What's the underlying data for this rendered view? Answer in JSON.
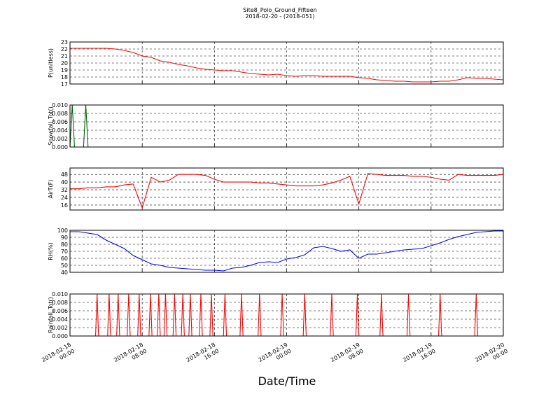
{
  "title": "Site8_Polo_Ground_Fifteen",
  "subtitle": "2018-02-20 - (2018-051)",
  "xlabel": "Date/Time",
  "xlim": [
    "2018-02-18 00:00",
    "2018-02-20 00:00"
  ],
  "xticks": [
    {
      "value": "2018-02-18 00:00",
      "label": "2018-02-18 00:00"
    },
    {
      "value": "2018-02-18 08:00",
      "label": "2018-02-18 08:00"
    },
    {
      "value": "2018-02-18 16:00",
      "label": "2018-02-18 16:00"
    },
    {
      "value": "2018-02-19 00:00",
      "label": "2018-02-19 00:00"
    },
    {
      "value": "2018-02-19 08:00",
      "label": "2018-02-19 08:00"
    },
    {
      "value": "2018-02-19 16:00",
      "label": "2018-02-19 16:00"
    },
    {
      "value": "2018-02-20 00:00",
      "label": "2018-02-20 00:00"
    }
  ],
  "chart_data": [
    {
      "type": "line",
      "ylabel": "P(unitless)",
      "color": "#ff0000",
      "grid": true,
      "ylim": [
        17,
        23
      ],
      "yticks": [
        17,
        18,
        19,
        20,
        21,
        22,
        23
      ],
      "x": [
        "2018-02-18 00:00",
        "2018-02-18 01:00",
        "2018-02-18 02:00",
        "2018-02-18 03:00",
        "2018-02-18 04:00",
        "2018-02-18 05:00",
        "2018-02-18 06:00",
        "2018-02-18 07:00",
        "2018-02-18 08:00",
        "2018-02-18 09:00",
        "2018-02-18 10:00",
        "2018-02-18 11:00",
        "2018-02-18 12:00",
        "2018-02-18 13:00",
        "2018-02-18 14:00",
        "2018-02-18 15:00",
        "2018-02-18 16:00",
        "2018-02-18 17:00",
        "2018-02-18 18:00",
        "2018-02-18 19:00",
        "2018-02-18 20:00",
        "2018-02-18 21:00",
        "2018-02-18 22:00",
        "2018-02-18 23:00",
        "2018-02-19 00:00",
        "2018-02-19 01:00",
        "2018-02-19 02:00",
        "2018-02-19 03:00",
        "2018-02-19 04:00",
        "2018-02-19 05:00",
        "2018-02-19 06:00",
        "2018-02-19 07:00",
        "2018-02-19 08:00",
        "2018-02-19 09:00",
        "2018-02-19 10:00",
        "2018-02-19 11:00",
        "2018-02-19 12:00",
        "2018-02-19 13:00",
        "2018-02-19 14:00",
        "2018-02-19 15:00",
        "2018-02-19 16:00",
        "2018-02-19 17:00",
        "2018-02-19 18:00",
        "2018-02-19 19:00",
        "2018-02-19 20:00",
        "2018-02-19 21:00",
        "2018-02-19 22:00",
        "2018-02-19 23:00",
        "2018-02-20 00:00"
      ],
      "values": [
        22.1,
        22.1,
        22.1,
        22.1,
        22.1,
        22.0,
        21.8,
        21.5,
        21.0,
        20.8,
        20.3,
        20.1,
        19.8,
        19.6,
        19.3,
        19.1,
        19.0,
        18.9,
        18.9,
        18.7,
        18.5,
        18.4,
        18.3,
        18.4,
        18.2,
        18.1,
        18.2,
        18.2,
        18.1,
        18.1,
        18.1,
        18.1,
        17.9,
        17.8,
        17.6,
        17.5,
        17.4,
        17.4,
        17.3,
        17.3,
        17.3,
        17.4,
        17.4,
        17.6,
        17.9,
        17.8,
        17.8,
        17.7,
        17.6
      ]
    },
    {
      "type": "line",
      "ylabel": "Snowfall_Tot()",
      "color": "#006400",
      "grid": true,
      "ylim": [
        0,
        0.01
      ],
      "yticks": [
        {
          "value": 0,
          "label": "0.000"
        },
        {
          "value": 0.002,
          "label": "0.002"
        },
        {
          "value": 0.004,
          "label": "0.004"
        },
        {
          "value": 0.006,
          "label": "0.006"
        },
        {
          "value": 0.008,
          "label": "0.008"
        },
        {
          "value": 0.01,
          "label": "0.010"
        }
      ],
      "x": [
        "2018-02-18 00:00",
        "2018-02-18 00:15",
        "2018-02-18 00:30",
        "2018-02-18 01:30",
        "2018-02-18 01:45",
        "2018-02-18 02:00",
        "2018-02-20 00:00"
      ],
      "values": [
        0,
        0.01,
        0,
        0,
        0.01,
        0,
        0
      ]
    },
    {
      "type": "line",
      "ylabel": "AirT(F)",
      "color": "#ff0000",
      "grid": true,
      "ylim": [
        10.8,
        54.7
      ],
      "yticks": [
        16,
        24,
        32,
        40,
        48
      ],
      "x": [
        "2018-02-18 00:00",
        "2018-02-18 01:00",
        "2018-02-18 02:00",
        "2018-02-18 03:00",
        "2018-02-18 04:00",
        "2018-02-18 05:00",
        "2018-02-18 06:00",
        "2018-02-18 07:00",
        "2018-02-18 08:00",
        "2018-02-18 09:00",
        "2018-02-18 10:00",
        "2018-02-18 11:00",
        "2018-02-18 12:00",
        "2018-02-18 13:00",
        "2018-02-18 14:00",
        "2018-02-18 15:00",
        "2018-02-18 16:00",
        "2018-02-18 17:00",
        "2018-02-18 18:00",
        "2018-02-18 19:00",
        "2018-02-18 20:00",
        "2018-02-18 21:00",
        "2018-02-18 22:00",
        "2018-02-18 23:00",
        "2018-02-19 00:00",
        "2018-02-19 01:00",
        "2018-02-19 02:00",
        "2018-02-19 03:00",
        "2018-02-19 04:00",
        "2018-02-19 05:00",
        "2018-02-19 06:00",
        "2018-02-19 07:00",
        "2018-02-19 08:00",
        "2018-02-19 09:00",
        "2018-02-19 10:00",
        "2018-02-19 11:00",
        "2018-02-19 12:00",
        "2018-02-19 13:00",
        "2018-02-19 14:00",
        "2018-02-19 15:00",
        "2018-02-19 16:00",
        "2018-02-19 17:00",
        "2018-02-19 18:00",
        "2018-02-19 19:00",
        "2018-02-19 20:00",
        "2018-02-19 21:00",
        "2018-02-19 22:00",
        "2018-02-19 23:00",
        "2018-02-20 00:00"
      ],
      "values": [
        33,
        33,
        34,
        34,
        35,
        35,
        37,
        38,
        13,
        45,
        40,
        42,
        48,
        48,
        48,
        47,
        43,
        40,
        40,
        40,
        40,
        39,
        39,
        38,
        37,
        36,
        36,
        36,
        37,
        39,
        42,
        46,
        17,
        49,
        48,
        47,
        47,
        47,
        46,
        46,
        45,
        43,
        42,
        48,
        47,
        47,
        47,
        47,
        48
      ]
    },
    {
      "type": "line",
      "ylabel": "RH(%)",
      "color": "#0000ff",
      "grid": true,
      "ylim": [
        40,
        100
      ],
      "yticks": [
        40,
        50,
        60,
        70,
        80,
        90,
        100
      ],
      "x": [
        "2018-02-18 00:00",
        "2018-02-18 01:00",
        "2018-02-18 02:00",
        "2018-02-18 03:00",
        "2018-02-18 04:00",
        "2018-02-18 05:00",
        "2018-02-18 06:00",
        "2018-02-18 07:00",
        "2018-02-18 08:00",
        "2018-02-18 09:00",
        "2018-02-18 10:00",
        "2018-02-18 11:00",
        "2018-02-18 12:00",
        "2018-02-18 13:00",
        "2018-02-18 14:00",
        "2018-02-18 15:00",
        "2018-02-18 16:00",
        "2018-02-18 17:00",
        "2018-02-18 18:00",
        "2018-02-18 19:00",
        "2018-02-18 20:00",
        "2018-02-18 21:00",
        "2018-02-18 22:00",
        "2018-02-18 23:00",
        "2018-02-19 00:00",
        "2018-02-19 01:00",
        "2018-02-19 02:00",
        "2018-02-19 03:00",
        "2018-02-19 04:00",
        "2018-02-19 05:00",
        "2018-02-19 06:00",
        "2018-02-19 07:00",
        "2018-02-19 08:00",
        "2018-02-19 09:00",
        "2018-02-19 10:00",
        "2018-02-19 11:00",
        "2018-02-19 12:00",
        "2018-02-19 13:00",
        "2018-02-19 14:00",
        "2018-02-19 15:00",
        "2018-02-19 16:00",
        "2018-02-19 17:00",
        "2018-02-19 18:00",
        "2018-02-19 19:00",
        "2018-02-19 20:00",
        "2018-02-19 21:00",
        "2018-02-19 22:00",
        "2018-02-19 23:00",
        "2018-02-20 00:00"
      ],
      "values": [
        98,
        98,
        96,
        94,
        86,
        80,
        74,
        64,
        58,
        52,
        50,
        47,
        46,
        45,
        44,
        43,
        43,
        42,
        46,
        47,
        50,
        54,
        55,
        54,
        59,
        61,
        65,
        75,
        77,
        74,
        70,
        72,
        60,
        66,
        66,
        68,
        70,
        72,
        73,
        74,
        78,
        82,
        87,
        91,
        94,
        97,
        98,
        99,
        99
      ]
    },
    {
      "type": "line",
      "ylabel": "Rainfall_Tot()",
      "color": "#ff0000",
      "grid": true,
      "ylim": [
        0,
        0.01
      ],
      "yticks": [
        {
          "value": 0,
          "label": "0.000"
        },
        {
          "value": 0.002,
          "label": "0.002"
        },
        {
          "value": 0.004,
          "label": "0.004"
        },
        {
          "value": 0.006,
          "label": "0.006"
        },
        {
          "value": 0.008,
          "label": "0.008"
        },
        {
          "value": 0.01,
          "label": "0.010"
        }
      ],
      "x": [
        "2018-02-18 00:00",
        "2018-02-18 02:50",
        "2018-02-18 03:00",
        "2018-02-18 03:10",
        "2018-02-18 04:10",
        "2018-02-18 04:20",
        "2018-02-18 04:30",
        "2018-02-18 05:10",
        "2018-02-18 05:20",
        "2018-02-18 05:30",
        "2018-02-18 06:20",
        "2018-02-18 06:30",
        "2018-02-18 06:40",
        "2018-02-18 07:30",
        "2018-02-18 07:40",
        "2018-02-18 07:50",
        "2018-02-18 08:45",
        "2018-02-18 08:55",
        "2018-02-18 09:05",
        "2018-02-18 09:40",
        "2018-02-18 09:50",
        "2018-02-18 10:00",
        "2018-02-18 10:25",
        "2018-02-18 10:35",
        "2018-02-18 10:45",
        "2018-02-18 11:25",
        "2018-02-18 11:35",
        "2018-02-18 11:45",
        "2018-02-18 12:20",
        "2018-02-18 12:30",
        "2018-02-18 12:40",
        "2018-02-18 13:10",
        "2018-02-18 13:20",
        "2018-02-18 13:30",
        "2018-02-18 14:20",
        "2018-02-18 14:30",
        "2018-02-18 14:40",
        "2018-02-18 15:30",
        "2018-02-18 15:40",
        "2018-02-18 15:50",
        "2018-02-18 17:00",
        "2018-02-18 17:10",
        "2018-02-18 17:20",
        "2018-02-18 18:50",
        "2018-02-18 19:00",
        "2018-02-18 19:10",
        "2018-02-18 20:50",
        "2018-02-18 21:00",
        "2018-02-18 21:10",
        "2018-02-18 23:20",
        "2018-02-18 23:30",
        "2018-02-18 23:40",
        "2018-02-19 01:50",
        "2018-02-19 02:00",
        "2018-02-19 02:10",
        "2018-02-19 04:50",
        "2018-02-19 05:00",
        "2018-02-19 05:10",
        "2018-02-19 07:40",
        "2018-02-19 07:50",
        "2018-02-19 08:00",
        "2018-02-19 10:20",
        "2018-02-19 10:30",
        "2018-02-19 10:40",
        "2018-02-19 13:20",
        "2018-02-19 13:30",
        "2018-02-19 13:40",
        "2018-02-19 16:50",
        "2018-02-19 17:00",
        "2018-02-19 17:10",
        "2018-02-19 20:50",
        "2018-02-19 21:00",
        "2018-02-19 21:10",
        "2018-02-20 00:00"
      ],
      "values": [
        0,
        0,
        0.01,
        0,
        0,
        0.01,
        0,
        0,
        0.01,
        0,
        0,
        0.01,
        0,
        0,
        0.01,
        0,
        0,
        0.01,
        0,
        0,
        0.01,
        0,
        0,
        0.01,
        0,
        0,
        0.01,
        0,
        0,
        0.01,
        0,
        0,
        0.01,
        0,
        0,
        0.01,
        0,
        0,
        0.01,
        0,
        0,
        0.01,
        0,
        0,
        0.01,
        0,
        0,
        0.01,
        0,
        0,
        0.01,
        0,
        0,
        0.01,
        0,
        0,
        0.01,
        0,
        0,
        0.01,
        0,
        0,
        0.01,
        0,
        0,
        0.01,
        0,
        0,
        0.01,
        0,
        0,
        0.01,
        0,
        0
      ]
    }
  ]
}
